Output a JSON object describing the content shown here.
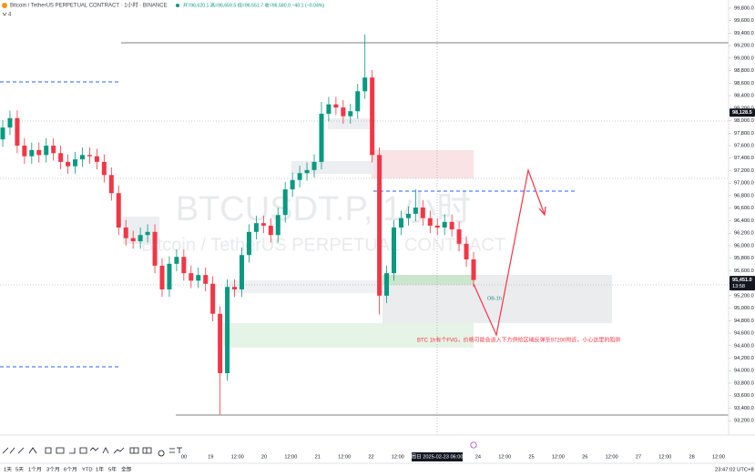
{
  "header": {
    "symbol": "Bitcoin / TetherUS PERPETUAL CONTRACT · 1小时 · BINANCE",
    "ohlc": "开=96,620.1 高=96,659.5 低=96,551.7 收=96,580.0 −40.1 (−0.04%)",
    "count": "4"
  },
  "chart_data": {
    "type": "candlestick",
    "up_color": "#089981",
    "down_color": "#f23645",
    "open": [
      97700,
      97890,
      98040,
      97600,
      97430,
      97530,
      97450,
      97600,
      97480,
      97340,
      97270,
      97380,
      97450,
      97430,
      97340,
      97130,
      96840,
      96290,
      96120,
      96070,
      96170,
      96220,
      95680,
      95300,
      95710,
      95820,
      95560,
      95440,
      95530,
      95390,
      94910,
      93960,
      95340,
      95300,
      95850,
      96220,
      96360,
      96320,
      96170,
      96490,
      96900,
      97050,
      97160,
      97210,
      97340,
      98110,
      98260,
      98210,
      98070,
      98150,
      98470,
      98690,
      97450,
      95200,
      95560,
      96290,
      96440,
      96510,
      96610,
      96440,
      96320,
      96290,
      96380,
      96260,
      96030,
      95780
    ],
    "high": [
      98010,
      98160,
      98160,
      97720,
      97650,
      97650,
      97720,
      97720,
      97600,
      97460,
      97500,
      97570,
      97570,
      97550,
      97460,
      97250,
      96960,
      96410,
      96240,
      96290,
      96340,
      96340,
      95800,
      95830,
      95940,
      95940,
      95680,
      95650,
      95650,
      95510,
      95030,
      95460,
      95460,
      95970,
      96340,
      96480,
      96480,
      96440,
      96610,
      97020,
      97170,
      97280,
      97330,
      97460,
      98300,
      98380,
      98380,
      98330,
      98270,
      98590,
      99380,
      98810,
      97570,
      95680,
      96410,
      96560,
      96630,
      96900,
      96730,
      96560,
      96440,
      96500,
      96500,
      96380,
      96150,
      95900
    ],
    "low": [
      97580,
      97770,
      97480,
      97310,
      97310,
      97330,
      97330,
      97360,
      97220,
      97150,
      97150,
      97260,
      97310,
      97220,
      97010,
      96720,
      96170,
      96000,
      95950,
      95950,
      96050,
      95560,
      95180,
      95180,
      95590,
      95440,
      95320,
      95320,
      95270,
      94790,
      93300,
      93840,
      95180,
      95180,
      95730,
      96100,
      96200,
      96050,
      96050,
      96370,
      96780,
      96930,
      97040,
      97090,
      97220,
      97990,
      98090,
      97950,
      97950,
      98030,
      98350,
      97330,
      94900,
      95080,
      95440,
      96170,
      96320,
      96390,
      96320,
      96200,
      96170,
      96170,
      96140,
      95910,
      95660,
      95340
    ],
    "close": [
      97890,
      98040,
      97600,
      97430,
      97530,
      97450,
      97600,
      97480,
      97340,
      97270,
      97380,
      97450,
      97430,
      97340,
      97130,
      96840,
      96290,
      96120,
      96070,
      96170,
      96220,
      95680,
      95300,
      95710,
      95820,
      95560,
      95440,
      95530,
      95390,
      94910,
      93960,
      95340,
      95300,
      95850,
      96220,
      96360,
      96320,
      96170,
      96490,
      96900,
      97050,
      97160,
      97210,
      97340,
      98110,
      98260,
      98210,
      98070,
      98150,
      98470,
      98690,
      97450,
      95200,
      95560,
      96290,
      96440,
      96510,
      96610,
      96440,
      96320,
      96290,
      96380,
      96260,
      96030,
      95780,
      95451
    ],
    "ylim": [
      92970,
      99930
    ],
    "yticks": [
      {
        "value": 93200,
        "label": "93,200.0"
      },
      {
        "value": 93400,
        "label": "93,400.0"
      },
      {
        "value": 93600,
        "label": "93,600.0"
      },
      {
        "value": 93800,
        "label": "93,800.0"
      },
      {
        "value": 94000,
        "label": "94,000.0"
      },
      {
        "value": 94200,
        "label": "94,200.0"
      },
      {
        "value": 94400,
        "label": "94,400.0"
      },
      {
        "value": 94600,
        "label": "94,600.0"
      },
      {
        "value": 94800,
        "label": "94,800.0"
      },
      {
        "value": 95000,
        "label": "95,000.0"
      },
      {
        "value": 95200,
        "label": "95,200.0"
      },
      {
        "value": 95400,
        "label": "95,400.0"
      },
      {
        "value": 95600,
        "label": "95,600.0"
      },
      {
        "value": 95800,
        "label": "95,800.0"
      },
      {
        "value": 96000,
        "label": "96,000.0"
      },
      {
        "value": 96200,
        "label": "96,200.0"
      },
      {
        "value": 96400,
        "label": "96,400.0"
      },
      {
        "value": 96600,
        "label": "96,600.0"
      },
      {
        "value": 96800,
        "label": "96,800.0"
      },
      {
        "value": 97000,
        "label": "97,000.0"
      },
      {
        "value": 97200,
        "label": "97,200.0"
      },
      {
        "value": 97400,
        "label": "97,400.0"
      },
      {
        "value": 97600,
        "label": "97,600.0"
      },
      {
        "value": 97800,
        "label": "97,800.0"
      },
      {
        "value": 98000,
        "label": "98,000.0"
      },
      {
        "value": 98200,
        "label": "98,200.0"
      },
      {
        "value": 98400,
        "label": "98,400.0"
      },
      {
        "value": 98600,
        "label": "98,600.0"
      },
      {
        "value": 98800,
        "label": "98,800.0"
      },
      {
        "value": 99000,
        "label": "99,000.0"
      },
      {
        "value": 99200,
        "label": "99,200.0"
      },
      {
        "value": 99400,
        "label": "99,400.0"
      },
      {
        "value": 99600,
        "label": "99,600.0"
      },
      {
        "value": 99800,
        "label": "99,800.0"
      }
    ],
    "xticks": [
      "00",
      "19",
      "12:00",
      "20",
      "12:00",
      "21",
      "12:00",
      "22",
      "12:00",
      "24",
      "12:00",
      "25",
      "12:00",
      "26",
      "12:00",
      "27",
      "12:00",
      "28",
      "12:00"
    ],
    "crosshair_time": "周日 2025-02-23  06:00",
    "price_labels": [
      {
        "value": 98128.5,
        "label": "98,128.5"
      },
      {
        "value": 95451,
        "label": "95,451.0"
      }
    ],
    "countdown": "13:58",
    "watermark": [
      "BTCUSDT.P, 1小时",
      "Bitcoin / TetherUS PERPETUAL CONTRACT"
    ],
    "annotations": [
      "OB-1h",
      "BTC 1h有个FVG，价格可能会进入下方供给区域反弹至97200附近，小心这里的陷阱"
    ]
  },
  "footer": {
    "ranges": [
      "1天",
      "5天",
      "1个月",
      "3个月",
      "6个月",
      "YTD",
      "1年",
      "5年",
      "全部"
    ],
    "clock": "23:47:02 UTC+8"
  }
}
